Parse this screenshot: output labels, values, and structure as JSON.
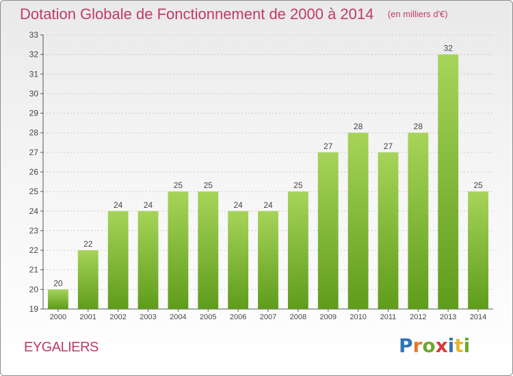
{
  "title": "Dotation Globale de Fonctionnement de 2000 à 2014",
  "subtitle": "(en milliers d'€)",
  "commune": "EYGALIERS",
  "logo": {
    "letters": [
      "P",
      "r",
      "o",
      "x",
      "i",
      "t",
      "i"
    ],
    "colors": [
      "#2f74b8",
      "#e8792a",
      "#6aaa2a",
      "#d93a3a",
      "#2f74b8",
      "#e8b82a",
      "#6aaa2a"
    ]
  },
  "colors": {
    "title": "#c0396b",
    "bar_top": "#a6d459",
    "bar_bottom": "#5f9c1c"
  },
  "chart_data": {
    "type": "bar",
    "categories": [
      "2000",
      "2001",
      "2002",
      "2003",
      "2004",
      "2005",
      "2006",
      "2007",
      "2008",
      "2009",
      "2010",
      "2011",
      "2012",
      "2013",
      "2014"
    ],
    "values": [
      20,
      22,
      24,
      24,
      25,
      25,
      24,
      24,
      25,
      27,
      28,
      27,
      28,
      32,
      25
    ],
    "value_labels": [
      "20",
      "22",
      "24",
      "24",
      "25",
      "25",
      "24",
      "24",
      "25",
      "27",
      "28",
      "27",
      "28",
      "32",
      "25"
    ],
    "yticks": [
      "19",
      "20",
      "21",
      "22",
      "23",
      "24",
      "25",
      "26",
      "27",
      "28",
      "29",
      "30",
      "31",
      "32",
      "33"
    ],
    "ylim": [
      19,
      33
    ],
    "grid": true,
    "legend": "none"
  }
}
